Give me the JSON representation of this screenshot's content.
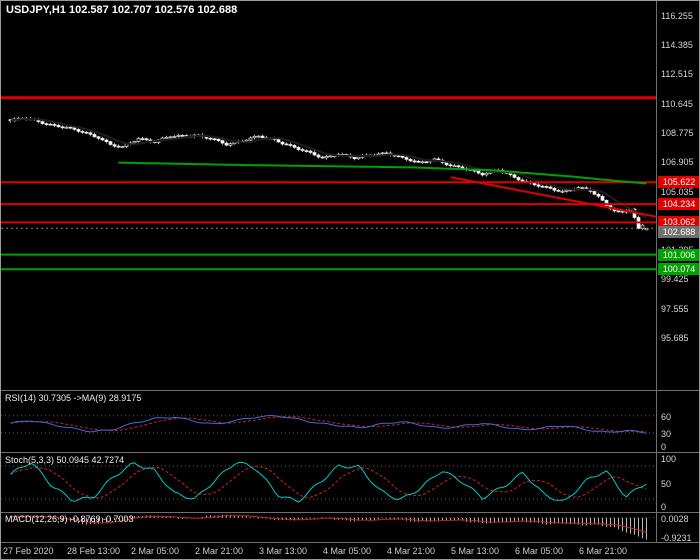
{
  "palette": {
    "bull": "#000000",
    "bear": "#ffffff",
    "wick": "#e6e6e6",
    "dark_ma": "#1e1e1e",
    "red": "#e00000",
    "green": "#00a200",
    "badge_current": "#707070",
    "axis_text": "#d6d6d6"
  },
  "chart_data": [
    {
      "id": "price",
      "type": "candlestick",
      "title": "USDJPY,H1",
      "ohlc_text": "102.587 102.707 102.576 102.688",
      "ylim": [
        92.3,
        117.2
      ],
      "y_ticks": [
        "116.255",
        "114.385",
        "112.515",
        "110.645",
        "108.775",
        "106.905",
        "105.035",
        "103.165",
        "101.295",
        "99.425",
        "97.555",
        "95.685"
      ],
      "x_labels": [
        {
          "i": 0,
          "t": "27 Feb 2020"
        },
        {
          "i": 16,
          "t": "28 Feb 13:00"
        },
        {
          "i": 32,
          "t": "2 Mar 05:00"
        },
        {
          "i": 48,
          "t": "2 Mar 21:00"
        },
        {
          "i": 64,
          "t": "3 Mar 13:00"
        },
        {
          "i": 80,
          "t": "4 Mar 05:00"
        },
        {
          "i": 96,
          "t": "4 Mar 21:00"
        },
        {
          "i": 112,
          "t": "5 Mar 13:00"
        },
        {
          "i": 128,
          "t": "6 Mar 05:00"
        },
        {
          "i": 144,
          "t": "6 Mar 21:00"
        }
      ],
      "candle_count": 160,
      "close_anchors": [
        [
          0,
          109.55
        ],
        [
          3,
          109.72
        ],
        [
          6,
          109.6
        ],
        [
          10,
          109.3
        ],
        [
          14,
          109.1
        ],
        [
          18,
          108.85
        ],
        [
          22,
          108.5
        ],
        [
          25,
          108.0
        ],
        [
          28,
          107.85
        ],
        [
          32,
          108.45
        ],
        [
          36,
          108.2
        ],
        [
          40,
          108.55
        ],
        [
          46,
          108.65
        ],
        [
          50,
          108.4
        ],
        [
          54,
          108.05
        ],
        [
          58,
          108.3
        ],
        [
          62,
          108.55
        ],
        [
          66,
          108.35
        ],
        [
          70,
          107.95
        ],
        [
          74,
          107.55
        ],
        [
          78,
          107.2
        ],
        [
          82,
          107.45
        ],
        [
          86,
          107.15
        ],
        [
          90,
          107.4
        ],
        [
          94,
          107.5
        ],
        [
          98,
          107.15
        ],
        [
          102,
          106.9
        ],
        [
          106,
          107.1
        ],
        [
          110,
          106.65
        ],
        [
          114,
          106.5
        ],
        [
          118,
          106.15
        ],
        [
          122,
          106.4
        ],
        [
          126,
          105.95
        ],
        [
          130,
          105.55
        ],
        [
          134,
          105.25
        ],
        [
          138,
          105.05
        ],
        [
          142,
          105.3
        ],
        [
          145,
          105.05
        ],
        [
          147,
          104.7
        ],
        [
          149,
          104.15
        ],
        [
          151,
          103.85
        ],
        [
          153,
          103.7
        ],
        [
          155,
          103.95
        ],
        [
          156,
          103.35
        ],
        [
          157,
          102.6
        ],
        [
          158,
          102.85
        ],
        [
          159,
          102.688
        ]
      ],
      "last_candle": {
        "o": 102.587,
        "h": 102.707,
        "l": 102.576,
        "c": 102.688
      },
      "current_price": 102.688,
      "current_price_label": "102.688",
      "hlines": [
        {
          "price": 111.02,
          "color": "#e00000",
          "width": 3,
          "label": ""
        },
        {
          "price": 105.622,
          "color": "#e00000",
          "width": 2,
          "label": "105.622"
        },
        {
          "price": 104.234,
          "color": "#e00000",
          "width": 2,
          "label": "104.234"
        },
        {
          "price": 103.062,
          "color": "#e00000",
          "width": 2,
          "label": "103.062"
        },
        {
          "price": 101.006,
          "color": "#00a200",
          "width": 2,
          "label": "101.006"
        },
        {
          "price": 100.074,
          "color": "#00a200",
          "width": 2,
          "label": "100.074"
        }
      ],
      "trendline": {
        "i1": 110,
        "p1": 105.95,
        "i2": 163,
        "p2": 103.35,
        "color": "#e00000"
      },
      "green_ma_anchors": [
        [
          27,
          106.88
        ],
        [
          60,
          106.72
        ],
        [
          100,
          106.58
        ],
        [
          120,
          106.4
        ],
        [
          140,
          106.0
        ],
        [
          150,
          105.75
        ],
        [
          159,
          105.55
        ]
      ],
      "dark_ma_period": 8
    },
    {
      "id": "rsi",
      "type": "line",
      "label": "RSI(14) 30.7305 ->MA(9) 28.9175",
      "range": [
        0,
        100
      ],
      "levels": [
        60,
        30
      ],
      "axis_labels": [
        "60",
        "30",
        "0"
      ],
      "values": [
        47,
        52,
        45,
        38,
        32,
        36,
        47,
        55,
        58,
        50,
        45,
        52,
        58,
        60,
        54,
        47,
        43,
        39,
        45,
        50,
        44,
        38,
        42,
        47,
        41,
        35,
        39,
        43,
        36,
        31,
        34,
        30.7
      ],
      "colors": {
        "main": "#4169e1",
        "signal": "#cc2222"
      }
    },
    {
      "id": "stoch",
      "type": "line",
      "label": "Stoch(5,3,3) 50.0945 42.7274",
      "range": [
        0,
        100
      ],
      "levels": [
        80,
        20
      ],
      "axis_labels": [
        "100",
        "50",
        "0"
      ],
      "values": [
        65,
        88,
        45,
        18,
        22,
        60,
        85,
        72,
        30,
        20,
        55,
        88,
        75,
        28,
        15,
        48,
        80,
        78,
        35,
        18,
        40,
        72,
        52,
        22,
        42,
        68,
        28,
        14,
        52,
        72,
        24,
        50
      ],
      "colors": {
        "main": "#00cbcb",
        "signal": "#cc2222"
      }
    },
    {
      "id": "macd",
      "type": "histogram",
      "label": "MACD(12,26,9) -0.8769 -0.7003",
      "range": [
        -0.95,
        0.12
      ],
      "axis_labels": [
        "0.0028",
        "-0.9231"
      ],
      "values": [
        0.06,
        0.1,
        0.03,
        -0.08,
        -0.22,
        -0.3,
        -0.18,
        0.02,
        0.1,
        0.07,
        0.0,
        -0.06,
        0.08,
        0.13,
        0.09,
        0.0,
        -0.07,
        -0.12,
        -0.06,
        0.02,
        -0.08,
        -0.14,
        -0.1,
        -0.03,
        -0.1,
        -0.18,
        -0.14,
        -0.08,
        -0.16,
        -0.24,
        -0.2,
        -0.14,
        -0.2,
        -0.28,
        -0.24,
        -0.32,
        -0.3,
        -0.42,
        -0.68,
        -0.92
      ],
      "colors": {
        "hist": "#b8b8b8",
        "signal": "#cc2222"
      }
    }
  ]
}
